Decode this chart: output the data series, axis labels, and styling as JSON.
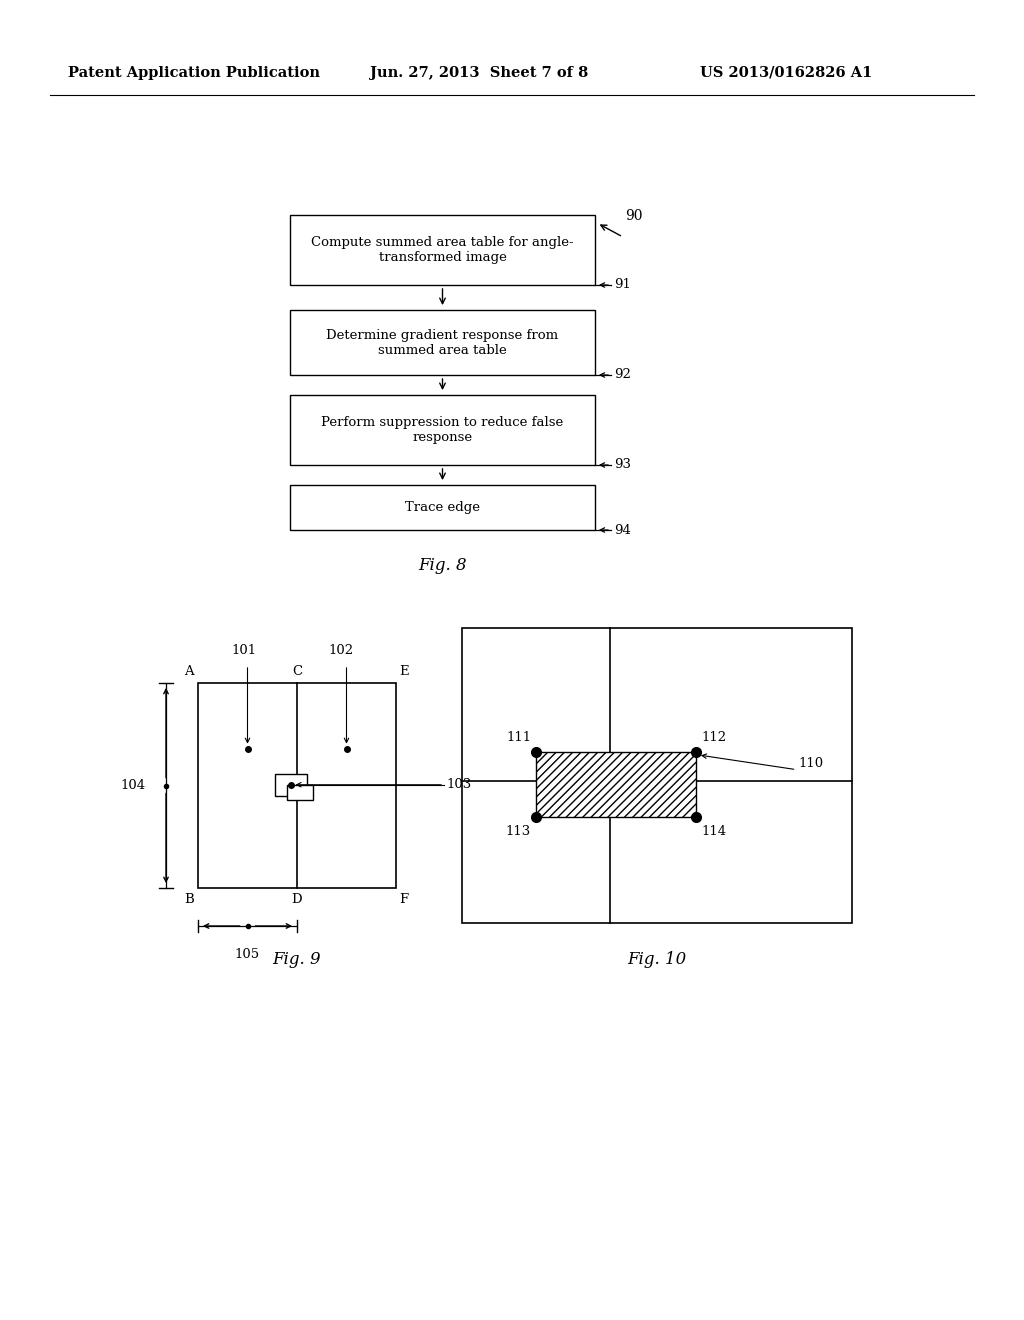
{
  "header_left": "Patent Application Publication",
  "header_mid": "Jun. 27, 2013  Sheet 7 of 8",
  "header_right": "US 2013/0162826 A1",
  "fig8_boxes": [
    {
      "text": "Compute summed area table for angle-\ntransformed image",
      "label": "91"
    },
    {
      "text": "Determine gradient response from\nsummed area table",
      "label": "92"
    },
    {
      "text": "Perform suppression to reduce false\nresponse",
      "label": "93"
    },
    {
      "text": "Trace edge",
      "label": "94"
    }
  ],
  "fig8_label": "90",
  "fig8_caption": "Fig. 8",
  "fig9_caption": "Fig. 9",
  "fig10_caption": "Fig. 10",
  "bg_color": "#ffffff",
  "line_color": "#000000"
}
